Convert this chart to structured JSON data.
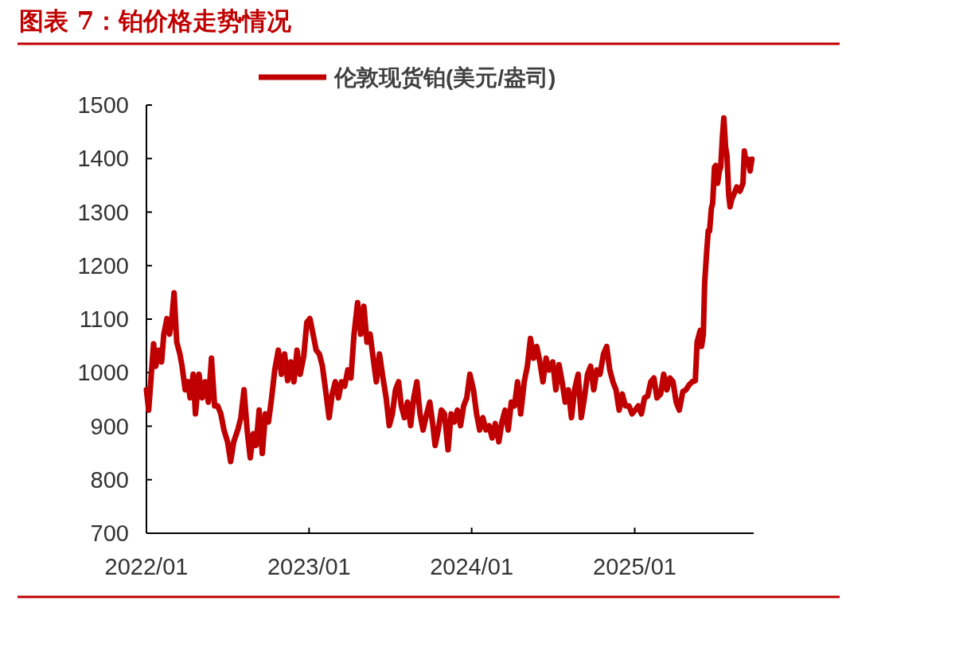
{
  "chart_data": {
    "type": "line",
    "title": "图表 7：铂价格走势情况",
    "x": [
      "2022-01-01",
      "2022-01-06",
      "2022-01-12",
      "2022-01-17",
      "2022-01-22",
      "2022-01-29",
      "2022-02-04",
      "2022-02-09",
      "2022-02-16",
      "2022-02-22",
      "2022-02-27",
      "2022-03-04",
      "2022-03-10",
      "2022-03-17",
      "2022-03-22",
      "2022-03-29",
      "2022-04-04",
      "2022-04-09",
      "2022-04-16",
      "2022-04-21",
      "2022-04-29",
      "2022-05-06",
      "2022-05-13",
      "2022-05-20",
      "2022-05-27",
      "2022-06-03",
      "2022-06-10",
      "2022-06-17",
      "2022-06-24",
      "2022-07-02",
      "2022-07-09",
      "2022-07-16",
      "2022-07-25",
      "2022-08-01",
      "2022-08-08",
      "2022-08-15",
      "2022-08-22",
      "2022-08-29",
      "2022-09-04",
      "2022-09-11",
      "2022-09-18",
      "2022-09-25",
      "2022-10-02",
      "2022-10-09",
      "2022-10-16",
      "2022-10-24",
      "2022-10-31",
      "2022-11-07",
      "2022-11-14",
      "2022-11-21",
      "2022-11-28",
      "2022-12-05",
      "2022-12-12",
      "2022-12-20",
      "2022-12-27",
      "2023-01-03",
      "2023-01-10",
      "2023-01-17",
      "2023-01-24",
      "2023-01-31",
      "2023-02-07",
      "2023-02-15",
      "2023-02-22",
      "2023-03-01",
      "2023-03-08",
      "2023-03-15",
      "2023-03-22",
      "2023-03-29",
      "2023-04-05",
      "2023-04-12",
      "2023-04-20",
      "2023-04-27",
      "2023-05-04",
      "2023-05-11",
      "2023-05-18",
      "2023-05-25",
      "2023-06-01",
      "2023-06-08",
      "2023-06-16",
      "2023-06-23",
      "2023-06-30",
      "2023-07-07",
      "2023-07-14",
      "2023-07-21",
      "2023-07-27",
      "2023-08-03",
      "2023-08-10",
      "2023-08-17",
      "2023-08-24",
      "2023-08-31",
      "2023-09-07",
      "2023-09-14",
      "2023-09-22",
      "2023-09-29",
      "2023-10-06",
      "2023-10-11",
      "2023-10-18",
      "2023-10-25",
      "2023-11-01",
      "2023-11-09",
      "2023-11-16",
      "2023-11-23",
      "2023-11-30",
      "2023-12-07",
      "2023-12-14",
      "2023-12-21",
      "2023-12-28",
      "2024-01-05",
      "2024-01-12",
      "2024-01-19",
      "2024-01-26",
      "2024-02-02",
      "2024-02-09",
      "2024-02-16",
      "2024-02-23",
      "2024-03-02",
      "2024-03-09",
      "2024-03-16",
      "2024-03-23",
      "2024-03-30",
      "2024-04-06",
      "2024-04-13",
      "2024-04-20",
      "2024-04-28",
      "2024-05-05",
      "2024-05-12",
      "2024-05-19",
      "2024-05-26",
      "2024-06-02",
      "2024-06-09",
      "2024-06-16",
      "2024-06-23",
      "2024-07-01",
      "2024-07-08",
      "2024-07-15",
      "2024-07-22",
      "2024-07-29",
      "2024-08-05",
      "2024-08-12",
      "2024-08-19",
      "2024-08-27",
      "2024-09-03",
      "2024-09-10",
      "2024-09-17",
      "2024-09-24",
      "2024-10-01",
      "2024-10-08",
      "2024-10-15",
      "2024-10-23",
      "2024-10-30",
      "2024-11-06",
      "2024-11-13",
      "2024-11-20",
      "2024-11-27",
      "2024-12-04",
      "2024-12-11",
      "2024-12-19",
      "2024-12-26",
      "2025-01-02",
      "2025-01-09",
      "2025-01-16",
      "2025-01-23",
      "2025-01-30",
      "2025-02-06",
      "2025-02-13",
      "2025-02-20",
      "2025-02-28",
      "2025-03-07",
      "2025-03-14",
      "2025-03-21",
      "2025-03-28",
      "2025-04-04",
      "2025-04-11",
      "2025-04-19",
      "2025-04-26",
      "2025-05-03",
      "2025-05-10",
      "2025-05-17",
      "2025-05-21",
      "2025-05-28",
      "2025-05-31",
      "2025-06-04",
      "2025-06-07",
      "2025-06-11",
      "2025-06-15",
      "2025-06-18",
      "2025-06-22",
      "2025-06-25",
      "2025-06-29",
      "2025-07-02",
      "2025-07-06",
      "2025-07-10",
      "2025-07-13",
      "2025-07-17",
      "2025-07-20",
      "2025-07-24",
      "2025-07-27",
      "2025-07-31",
      "2025-08-03",
      "2025-08-07",
      "2025-08-11",
      "2025-08-18",
      "2025-08-25",
      "2025-09-01",
      "2025-09-04",
      "2025-09-08",
      "2025-09-12",
      "2025-09-17",
      "2025-09-21"
    ],
    "series": [
      {
        "name": "伦敦现货铂(美元/盎司)",
        "color": "#c00000",
        "values": [
          968,
          930,
          997,
          1054,
          1012,
          1042,
          1020,
          1072,
          1101,
          1072,
          1101,
          1149,
          1057,
          1035,
          1012,
          968,
          983,
          953,
          997,
          923,
          997,
          953,
          983,
          945,
          1027,
          938,
          938,
          923,
          893,
          871,
          834,
          871,
          893,
          916,
          968,
          893,
          841,
          886,
          864,
          930,
          849,
          923,
          908,
          953,
          1005,
          1042,
          997,
          1035,
          985,
          1020,
          983,
          1042,
          997,
          1030,
          1094,
          1101,
          1072,
          1042,
          1035,
          1012,
          968,
          916,
          960,
          983,
          953,
          983,
          975,
          1005,
          990,
          1072,
          1131,
          1072,
          1124,
          1057,
          1072,
          1027,
          983,
          1035,
          990,
          953,
          901,
          923,
          968,
          983,
          938,
          916,
          945,
          901,
          953,
          983,
          923,
          893,
          923,
          945,
          901,
          864,
          893,
          930,
          923,
          856,
          923,
          908,
          930,
          901,
          938,
          953,
          997,
          968,
          923,
          893,
          916,
          893,
          901,
          878,
          905,
          871,
          908,
          930,
          893,
          945,
          938,
          983,
          923,
          983,
          1012,
          1064,
          1027,
          1049,
          1020,
          983,
          1027,
          1005,
          1020,
          968,
          1015,
          983,
          945,
          968,
          916,
          968,
          997,
          916,
          953,
          997,
          1012,
          968,
          1005,
          997,
          1035,
          1049,
          1005,
          983,
          968,
          930,
          960,
          938,
          938,
          923,
          930,
          938,
          923,
          953,
          956,
          983,
          990,
          953,
          960,
          997,
          968,
          990,
          983,
          945,
          930,
          965,
          968,
          977,
          983,
          985,
          1057,
          1079,
          1049,
          1072,
          1168,
          1220,
          1265,
          1265,
          1307,
          1317,
          1384,
          1387,
          1354,
          1377,
          1384,
          1443,
          1476,
          1421,
          1406,
          1332,
          1310,
          1325,
          1332,
          1347,
          1339,
          1354,
          1414,
          1391,
          1399,
          1377,
          1399
        ]
      }
    ],
    "xlim": [
      "2022-01-01",
      "2025-09-25"
    ],
    "xticks": [
      {
        "value": "2022-01-01",
        "label": "2022/01"
      },
      {
        "value": "2023-01-01",
        "label": "2023/01"
      },
      {
        "value": "2024-01-01",
        "label": "2024/01"
      },
      {
        "value": "2025-01-01",
        "label": "2025/01"
      }
    ],
    "ylim": [
      700,
      1500
    ],
    "yticks": [
      700,
      800,
      900,
      1000,
      1100,
      1200,
      1300,
      1400,
      1500
    ],
    "legend": "top"
  }
}
